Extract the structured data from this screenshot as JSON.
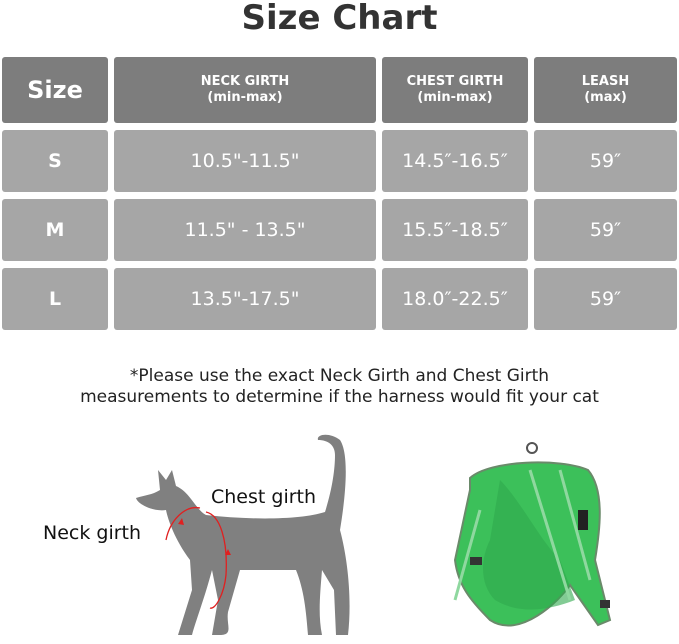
{
  "title": "Size Chart",
  "table": {
    "headers": [
      {
        "line1": "Size",
        "line2": ""
      },
      {
        "line1": "NECK GIRTH",
        "line2": "(min-max)"
      },
      {
        "line1": "CHEST GIRTH",
        "line2": "(min-max)"
      },
      {
        "line1": "LEASH",
        "line2": "(max)"
      }
    ],
    "rows": [
      [
        "S",
        "10.5\"-11.5\"",
        "14.5″-16.5″",
        "59″"
      ],
      [
        "M",
        "11.5\" - 13.5\"",
        "15.5″-18.5″",
        "59″"
      ],
      [
        "L",
        "13.5\"-17.5\"",
        "18.0″-22.5″",
        "59″"
      ]
    ]
  },
  "note": {
    "line1": "*Please use the exact Neck Girth and Chest Girth",
    "line2": "measurements to determine if the harness would fit your cat"
  },
  "diagram": {
    "chest_label": "Chest girth",
    "neck_label": "Neck girth"
  },
  "colors": {
    "header": "#7d7d7d",
    "row": "#a6a6a6",
    "cat": "#808080",
    "measure": "#e02020",
    "harness": "#3cc05a"
  }
}
